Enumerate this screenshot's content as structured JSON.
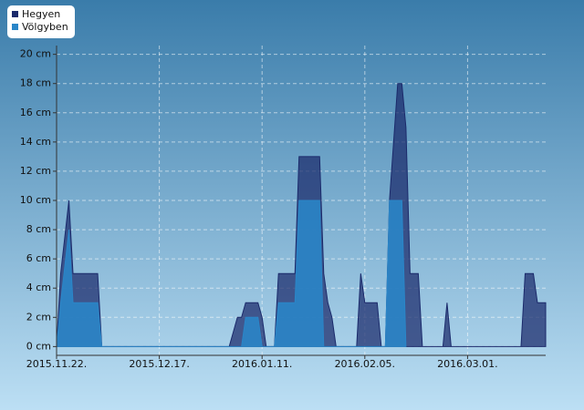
{
  "chart_data": {
    "type": "area",
    "xlim": [
      "2015-11-22",
      "2016-03-20"
    ],
    "xticks": [
      {
        "value": "2015-11-22",
        "label": "2015.11.22."
      },
      {
        "value": "2015-12-17",
        "label": "2015.12.17."
      },
      {
        "value": "2016-01-11",
        "label": "2016.01.11."
      },
      {
        "value": "2016-02-05",
        "label": "2016.02.05."
      },
      {
        "value": "2016-03-01",
        "label": "2016.03.01."
      }
    ],
    "ylim": [
      -0.6,
      20.6
    ],
    "yticks": [
      {
        "value": 0,
        "label": "0 cm"
      },
      {
        "value": 2,
        "label": "2 cm"
      },
      {
        "value": 4,
        "label": "4 cm"
      },
      {
        "value": 6,
        "label": "6 cm"
      },
      {
        "value": 8,
        "label": "8 cm"
      },
      {
        "value": 10,
        "label": "10 cm"
      },
      {
        "value": 12,
        "label": "12 cm"
      },
      {
        "value": 14,
        "label": "14 cm"
      },
      {
        "value": 16,
        "label": "16 cm"
      },
      {
        "value": 18,
        "label": "18 cm"
      },
      {
        "value": 20,
        "label": "20 cm"
      }
    ],
    "grid": true,
    "legend": "top-left",
    "series": [
      {
        "name": "Hegyen",
        "color": "#1b2a6b",
        "x": [
          "2015-11-22",
          "2015-11-23",
          "2015-11-25",
          "2015-11-26",
          "2015-12-02",
          "2015-12-03",
          "2016-01-03",
          "2016-01-05",
          "2016-01-06",
          "2016-01-07",
          "2016-01-10",
          "2016-01-11",
          "2016-01-12",
          "2016-01-14",
          "2016-01-15",
          "2016-01-19",
          "2016-01-20",
          "2016-01-25",
          "2016-01-26",
          "2016-01-27",
          "2016-01-28",
          "2016-01-29",
          "2016-02-03",
          "2016-02-04",
          "2016-02-05",
          "2016-02-08",
          "2016-02-09",
          "2016-02-10",
          "2016-02-11",
          "2016-02-13",
          "2016-02-14",
          "2016-02-15",
          "2016-02-16",
          "2016-02-18",
          "2016-02-19",
          "2016-02-24",
          "2016-02-25",
          "2016-02-26",
          "2016-03-14",
          "2016-03-15",
          "2016-03-17",
          "2016-03-18",
          "2016-03-20"
        ],
        "values": [
          0,
          5,
          10,
          5,
          5,
          0,
          0,
          2,
          2,
          3,
          3,
          2,
          0,
          0,
          5,
          5,
          13,
          13,
          5,
          3,
          2,
          0,
          0,
          5,
          3,
          3,
          0,
          0,
          10,
          18,
          18,
          15,
          5,
          5,
          0,
          0,
          3,
          0,
          0,
          5,
          5,
          3,
          3
        ]
      },
      {
        "name": "Völgyben",
        "color": "#2a86c8",
        "x": [
          "2015-11-22",
          "2015-11-23",
          "2015-11-25",
          "2015-11-26",
          "2015-12-02",
          "2015-12-03",
          "2016-01-06",
          "2016-01-07",
          "2016-01-10",
          "2016-01-11",
          "2016-01-14",
          "2016-01-15",
          "2016-01-19",
          "2016-01-20",
          "2016-01-25",
          "2016-01-26",
          "2016-02-10",
          "2016-02-11",
          "2016-02-14",
          "2016-02-15"
        ],
        "values": [
          0,
          3,
          8,
          3,
          3,
          0,
          0,
          2,
          2,
          0,
          0,
          3,
          3,
          10,
          10,
          0,
          0,
          10,
          10,
          0
        ]
      }
    ]
  }
}
